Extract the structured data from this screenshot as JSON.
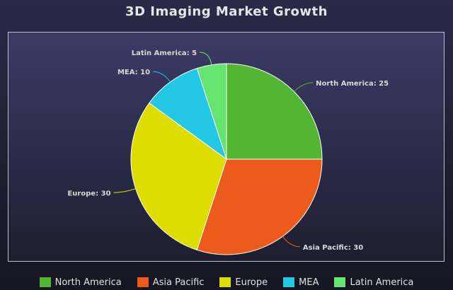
{
  "chart_data": {
    "type": "pie",
    "title": "3D Imaging Market Growth",
    "categories": [
      "North America",
      "Asia Pacific",
      "Europe",
      "MEA",
      "Latin America"
    ],
    "values": [
      25,
      30,
      30,
      10,
      5
    ],
    "colors": [
      "#52b533",
      "#ec5a1c",
      "#dddd00",
      "#22c8e4",
      "#65e570"
    ],
    "data_labels": [
      "North America: 25",
      "Asia Pacific: 30",
      "Europe: 30",
      "MEA: 10",
      "Latin America: 5"
    ],
    "legend_position": "bottom",
    "start_angle": "12 o'clock",
    "direction": "clockwise"
  },
  "legend": {
    "items": [
      {
        "label": "North America",
        "color": "#52b533"
      },
      {
        "label": "Asia Pacific",
        "color": "#ec5a1c"
      },
      {
        "label": "Europe",
        "color": "#dddd00"
      },
      {
        "label": "MEA",
        "color": "#22c8e4"
      },
      {
        "label": "Latin America",
        "color": "#65e570"
      }
    ]
  }
}
